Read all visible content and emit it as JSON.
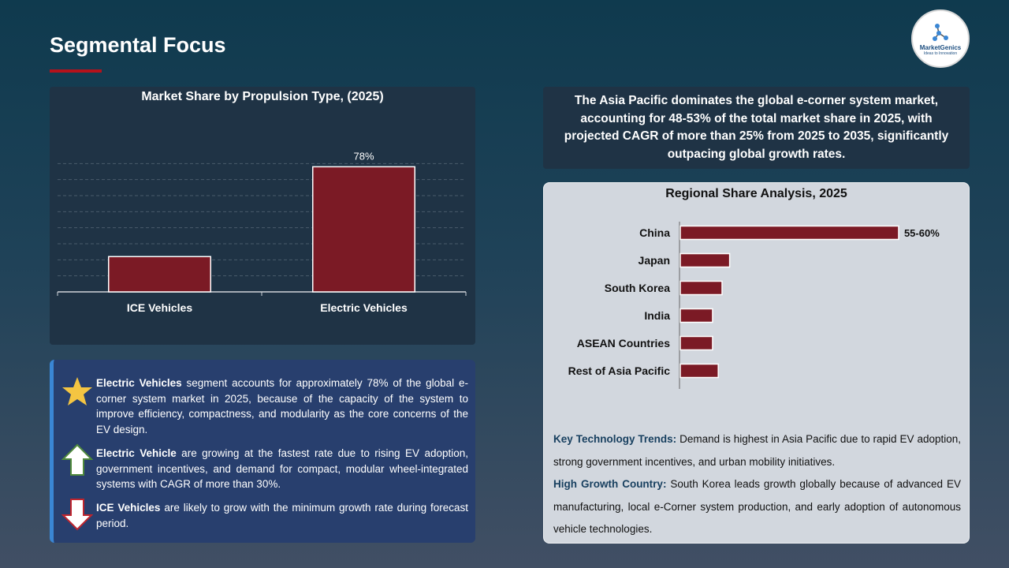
{
  "page": {
    "title": "Segmental Focus",
    "logo_name": "MarketGenics",
    "logo_tag": "Ideas to Innovation"
  },
  "chart_data": [
    {
      "type": "bar",
      "title": "Market Share by Propulsion Type, (2025)",
      "categories": [
        "ICE Vehicles",
        "Electric Vehicles"
      ],
      "values": [
        22,
        78
      ],
      "data_labels": [
        "",
        "78%"
      ],
      "ylim": [
        0,
        90
      ],
      "grid": true,
      "bar_color": "#7b1a25"
    },
    {
      "type": "bar",
      "orientation": "horizontal",
      "title": "Regional Share Analysis, 2025",
      "categories": [
        "China",
        "Japan",
        "South Korea",
        "India",
        "ASEAN Countries",
        "Rest of Asia Pacific"
      ],
      "values": [
        57.5,
        13,
        11,
        8.5,
        8.5,
        10
      ],
      "data_labels": [
        "55-60%",
        "",
        "",
        "",
        "",
        ""
      ],
      "xlim": [
        0,
        60
      ],
      "grid": false,
      "bar_color": "#7b1a25"
    }
  ],
  "notes": [
    {
      "icon": "star-icon",
      "bold": "Electric Vehicles",
      "text": " segment accounts for approximately 78% of the global e-corner system market in 2025, because of the capacity of the system to improve efficiency, compactness, and modularity as the core concerns of the EV design."
    },
    {
      "icon": "arrow-up-icon",
      "bold": "Electric Vehicle",
      "text": " are growing at the fastest rate due to rising EV adoption, government incentives, and demand for compact, modular wheel-integrated systems with CAGR of more than 30%."
    },
    {
      "icon": "arrow-down-icon",
      "bold": "ICE Vehicles",
      "text": " are likely to grow with the minimum growth rate during forecast period."
    }
  ],
  "highlight": "The Asia Pacific dominates the global e-corner system market, accounting for 48-53% of the total market share in 2025, with projected CAGR of more than 25% from 2025 to 2035, significantly outpacing global growth rates.",
  "region_notes": {
    "trend_label": "Key Technology Trends:",
    "trend_text": " Demand is highest in Asia Pacific due to rapid EV adoption, strong government incentives, and urban mobility initiatives.",
    "growth_label": "High Growth Country:",
    "growth_text": " South Korea leads growth globally because of advanced EV manufacturing, local e-Corner system production, and early adoption of autonomous vehicle technologies."
  },
  "colors": {
    "accent": "#b5121b",
    "bar": "#7b1a25",
    "star": "#f4c542",
    "arrow_up_fill": "#ffffff",
    "arrow_up_stroke": "#4f8a3c",
    "arrow_down_fill": "#ffffff",
    "arrow_down_stroke": "#c0252e"
  }
}
